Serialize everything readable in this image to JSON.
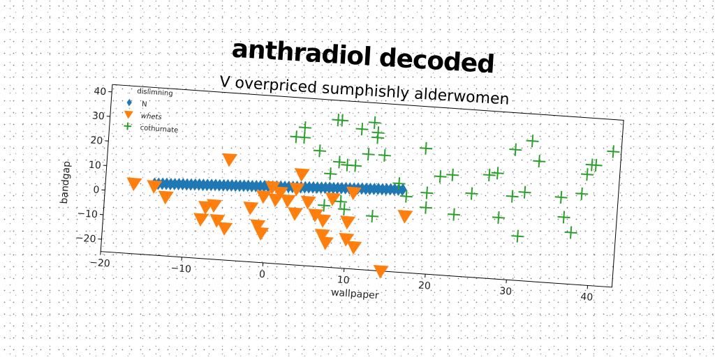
{
  "chart_data": {
    "type": "scatter",
    "title": "anthradiol decoded",
    "subtitle": "V overpriced sumphishly alderwomen",
    "xlabel": "wallpaper",
    "ylabel": "bandgap",
    "xlim": [
      -20,
      43
    ],
    "ylim": [
      -25,
      43
    ],
    "xticks": [
      -20,
      -10,
      0,
      10,
      20,
      30,
      40
    ],
    "yticks": [
      -20,
      -10,
      0,
      10,
      20,
      30,
      40
    ],
    "legend": {
      "title": "dislimning",
      "placement": "top-left"
    },
    "series": [
      {
        "name": "N",
        "marker": "diamond",
        "color": "#1f77b4",
        "points": [
          [
            -14,
            4
          ],
          [
            -13.5,
            4.1
          ],
          [
            -13,
            4.2
          ],
          [
            -12.5,
            4.3
          ],
          [
            -12,
            4.3
          ],
          [
            -11.5,
            4.4
          ],
          [
            -11,
            4.5
          ],
          [
            -10.5,
            4.6
          ],
          [
            -10,
            4.6
          ],
          [
            -9.5,
            4.7
          ],
          [
            -9,
            4.8
          ],
          [
            -8.5,
            4.9
          ],
          [
            -8,
            4.9
          ],
          [
            -7.5,
            5
          ],
          [
            -7,
            5.1
          ],
          [
            -6.5,
            5.2
          ],
          [
            -6,
            5.2
          ],
          [
            -5.5,
            5.3
          ],
          [
            -5,
            5.4
          ],
          [
            -4.5,
            5.5
          ],
          [
            -4,
            5.5
          ],
          [
            -3.5,
            5.6
          ],
          [
            -3,
            5.7
          ],
          [
            -2.5,
            5.8
          ],
          [
            -2,
            5.8
          ],
          [
            -1.5,
            5.9
          ],
          [
            -1,
            6
          ],
          [
            -0.5,
            6.1
          ],
          [
            0,
            6.1
          ],
          [
            0.5,
            6.2
          ],
          [
            1,
            6.3
          ],
          [
            1.5,
            6.4
          ],
          [
            2,
            6.4
          ],
          [
            2.5,
            6.5
          ],
          [
            3,
            6.6
          ],
          [
            3.5,
            6.7
          ],
          [
            4,
            6.7
          ],
          [
            4.5,
            6.8
          ],
          [
            5,
            6.9
          ],
          [
            5.5,
            7
          ],
          [
            6,
            7
          ],
          [
            6.5,
            7.1
          ],
          [
            7,
            7.2
          ],
          [
            7.5,
            7.3
          ],
          [
            8,
            7.3
          ],
          [
            8.5,
            7.4
          ],
          [
            9,
            7.5
          ],
          [
            9.5,
            7.6
          ],
          [
            10,
            7.6
          ],
          [
            10.5,
            7.7
          ],
          [
            11,
            7.8
          ],
          [
            11.5,
            7.9
          ],
          [
            12,
            7.9
          ],
          [
            12.5,
            8
          ],
          [
            13,
            8.1
          ],
          [
            13.5,
            8.2
          ],
          [
            14,
            8.2
          ],
          [
            14.5,
            8.3
          ],
          [
            15,
            8.4
          ],
          [
            15.5,
            8.5
          ],
          [
            16,
            8.5
          ],
          [
            16.5,
            8.6
          ]
        ]
      },
      {
        "name": "whets",
        "marker": "triangle-down",
        "color": "#ff7f0e",
        "points": [
          [
            -16.5,
            3.5
          ],
          [
            -14,
            3
          ],
          [
            -12.5,
            -1
          ],
          [
            -8,
            -9
          ],
          [
            -7.5,
            -4
          ],
          [
            -6.5,
            -3
          ],
          [
            -6,
            -9
          ],
          [
            -5,
            -12
          ],
          [
            -5,
            16
          ],
          [
            -2,
            -3
          ],
          [
            -1,
            -10
          ],
          [
            -0.5,
            -13
          ],
          [
            -0.5,
            2
          ],
          [
            0.5,
            6
          ],
          [
            1,
            1
          ],
          [
            1.5,
            4
          ],
          [
            2.5,
            1
          ],
          [
            3.5,
            6
          ],
          [
            3.5,
            -4
          ],
          [
            4,
            12
          ],
          [
            5,
            1
          ],
          [
            6,
            -4
          ],
          [
            7,
            -12
          ],
          [
            7,
            -6
          ],
          [
            7.5,
            -15
          ],
          [
            8,
            3
          ],
          [
            10,
            -13
          ],
          [
            10,
            -6
          ],
          [
            10.5,
            6
          ],
          [
            11,
            -16
          ],
          [
            14.5,
            -25
          ],
          [
            17,
            -2
          ]
        ]
      },
      {
        "name": "cothurnate",
        "marker": "plus",
        "color": "#2ca02c",
        "points": [
          [
            3,
            27
          ],
          [
            4,
            27
          ],
          [
            4,
            31
          ],
          [
            6,
            22
          ],
          [
            7,
            0
          ],
          [
            7.5,
            13
          ],
          [
            8,
            35
          ],
          [
            8.5,
            35
          ],
          [
            8.5,
            18
          ],
          [
            9,
            2
          ],
          [
            9.5,
            17
          ],
          [
            9.5,
            -1
          ],
          [
            10.5,
            17
          ],
          [
            11,
            32
          ],
          [
            12,
            22
          ],
          [
            12.5,
            35
          ],
          [
            13,
            31
          ],
          [
            13,
            29
          ],
          [
            13,
            -3
          ],
          [
            14,
            22
          ],
          [
            16,
            11
          ],
          [
            17,
            6
          ],
          [
            19,
            26
          ],
          [
            19.5,
            8
          ],
          [
            19.5,
            2
          ],
          [
            21,
            15
          ],
          [
            22.5,
            16
          ],
          [
            23,
            0
          ],
          [
            25,
            9
          ],
          [
            27,
            17
          ],
          [
            28,
            18
          ],
          [
            28.5,
            0
          ],
          [
            30,
            28
          ],
          [
            30,
            9
          ],
          [
            31,
            -7
          ],
          [
            31.5,
            11
          ],
          [
            32,
            32
          ],
          [
            33,
            24
          ],
          [
            36,
            10
          ],
          [
            36.5,
            2
          ],
          [
            37.5,
            -4
          ],
          [
            38.5,
            12
          ],
          [
            39,
            20
          ],
          [
            39.5,
            24
          ],
          [
            40,
            24
          ],
          [
            42,
            30
          ]
        ]
      }
    ]
  }
}
